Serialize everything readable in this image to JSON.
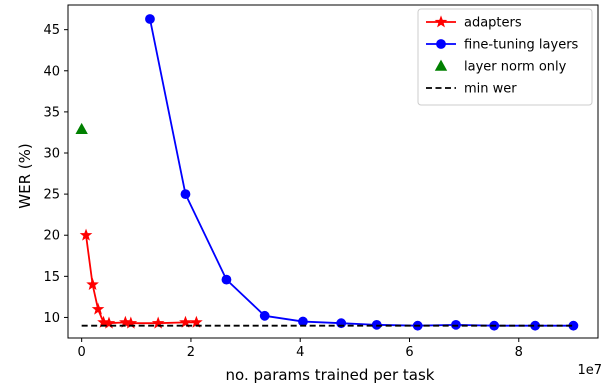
{
  "chart_data": {
    "type": "line",
    "title": "",
    "xlabel": "no. params trained per task",
    "ylabel": "WER (%)",
    "x_offset_label": "1e7",
    "xlim": [
      -2.5,
      94.5
    ],
    "ylim": [
      7.5,
      48.0
    ],
    "x_ticks": [
      0,
      20,
      40,
      60,
      80
    ],
    "x_tick_labels": [
      "0",
      "2",
      "4",
      "6",
      "8"
    ],
    "y_ticks": [
      10,
      15,
      20,
      25,
      30,
      35,
      40,
      45
    ],
    "y_tick_labels": [
      "10",
      "15",
      "20",
      "25",
      "30",
      "35",
      "40",
      "45"
    ],
    "grid": false,
    "legend_position": "top-right",
    "series": [
      {
        "name": "adapters",
        "color": "#ff0000",
        "marker": "star",
        "line": "solid",
        "x": [
          0.8,
          2.0,
          3.0,
          4.0,
          5.0,
          8.0,
          9.0,
          14.0,
          19.0,
          21.0
        ],
        "y": [
          20.0,
          14.0,
          11.0,
          9.4,
          9.3,
          9.4,
          9.3,
          9.3,
          9.4,
          9.4
        ]
      },
      {
        "name": "fine-tuning layers",
        "color": "#0000ff",
        "marker": "circle",
        "line": "solid",
        "x": [
          12.5,
          19.0,
          26.5,
          33.5,
          40.5,
          47.5,
          54.0,
          61.5,
          68.5,
          75.5,
          83.0,
          90.0
        ],
        "y": [
          46.3,
          25.0,
          14.6,
          10.2,
          9.5,
          9.3,
          9.1,
          9.0,
          9.1,
          9.0,
          9.0,
          9.0
        ]
      },
      {
        "name": "layer norm only",
        "color": "#008000",
        "marker": "triangle",
        "line": "none",
        "x": [
          0.0
        ],
        "y": [
          32.9
        ]
      },
      {
        "name": "min wer",
        "color": "#000000",
        "marker": "none",
        "line": "dashed",
        "x": [
          0.0,
          90.0
        ],
        "y": [
          9.0,
          9.0
        ]
      }
    ]
  }
}
